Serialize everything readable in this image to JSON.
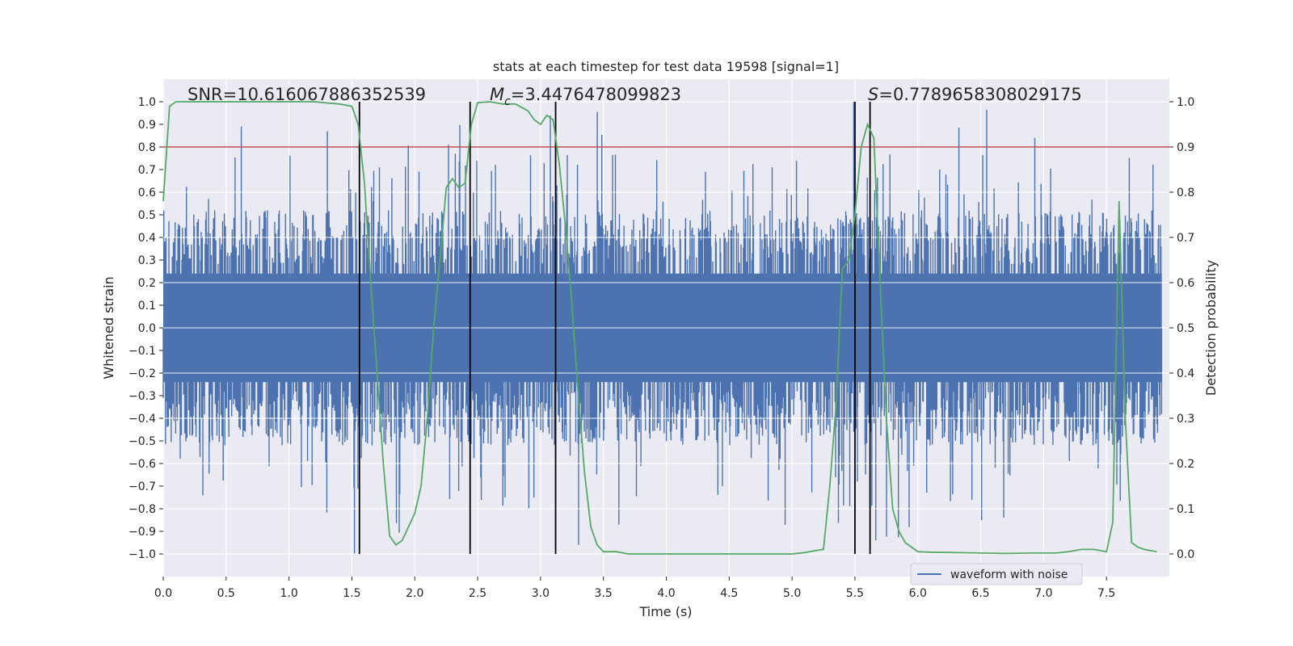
{
  "chart_data": {
    "type": "line",
    "title": "stats at each timestep for test data 19598 [signal=1]",
    "xlabel": "Time (s)",
    "ylabel": "Whitened strain",
    "ylabel_right": "Detection probability",
    "xlim": [
      0.0,
      8.0
    ],
    "ylim": [
      -1.1,
      1.1
    ],
    "ylim_right": [
      -0.05,
      1.05
    ],
    "x_ticks": [
      0.0,
      0.5,
      1.0,
      1.5,
      2.0,
      2.5,
      3.0,
      3.5,
      4.0,
      4.5,
      5.0,
      5.5,
      6.0,
      6.5,
      7.0,
      7.5
    ],
    "x_tick_labels": [
      "0.0",
      "0.5",
      "1.0",
      "1.5",
      "2.0",
      "2.5",
      "3.0",
      "3.5",
      "4.0",
      "4.5",
      "5.0",
      "5.5",
      "6.0",
      "6.5",
      "7.0",
      "7.5"
    ],
    "y_ticks": [
      1.0,
      0.9,
      0.8,
      0.7,
      0.6,
      0.5,
      0.4,
      0.3,
      0.2,
      0.1,
      0.0,
      -0.1,
      -0.2,
      -0.3,
      -0.4,
      -0.5,
      -0.6,
      -0.7,
      -0.8,
      -0.9,
      -1.0
    ],
    "y_tick_labels": [
      "1.0",
      "0.9",
      "0.8",
      "0.7",
      "0.6",
      "0.5",
      "0.4",
      "0.3",
      "0.2",
      "0.1",
      "0.0",
      "−0.1",
      "−0.2",
      "−0.3",
      "−0.4",
      "−0.5",
      "−0.6",
      "−0.7",
      "−0.8",
      "−0.9",
      "−1.0"
    ],
    "y_right_ticks": [
      1.0,
      0.9,
      0.8,
      0.7,
      0.6,
      0.5,
      0.4,
      0.3,
      0.2,
      0.1,
      0.0
    ],
    "y_right_tick_labels": [
      "1.0",
      "0.9",
      "0.8",
      "0.7",
      "0.6",
      "0.5",
      "0.4",
      "0.3",
      "0.2",
      "0.1",
      "0.0"
    ],
    "annotations": {
      "snr": "SNR=10.616067886352539",
      "mc_symbol": "M",
      "mc_subscript": "c",
      "mc_value": "=3.4476478099823",
      "s_symbol": "S",
      "s_value": "=0.7789658308029175"
    },
    "legend": {
      "label": "waveform with noise",
      "placement": "lower-right"
    },
    "threshold": {
      "value": 0.9,
      "axis": "right",
      "color": "#c44e52"
    },
    "vertical_lines": [
      1.56,
      2.44,
      3.12,
      5.5,
      5.62
    ],
    "colors": {
      "waveform": "#4c72b0",
      "probability": "#55a868",
      "vlines": "#000000",
      "background": "#eaeaf2"
    },
    "series": [
      {
        "name": "waveform with noise",
        "axis": "left",
        "description": "whitened strain, dense noise with amplitude roughly 0.3-0.6 and peaks up to about 1.0"
      },
      {
        "name": "Detection probability",
        "axis": "right",
        "x": [
          0.0,
          0.05,
          0.1,
          0.2,
          0.4,
          0.6,
          0.8,
          1.0,
          1.2,
          1.4,
          1.5,
          1.55,
          1.6,
          1.65,
          1.7,
          1.75,
          1.8,
          1.85,
          1.9,
          1.95,
          2.0,
          2.05,
          2.1,
          2.15,
          2.2,
          2.25,
          2.3,
          2.35,
          2.4,
          2.45,
          2.5,
          2.6,
          2.7,
          2.8,
          2.9,
          2.95,
          3.0,
          3.05,
          3.1,
          3.15,
          3.2,
          3.25,
          3.3,
          3.35,
          3.4,
          3.45,
          3.5,
          3.6,
          3.7,
          3.8,
          4.0,
          4.5,
          5.0,
          5.1,
          5.2,
          5.25,
          5.3,
          5.35,
          5.4,
          5.45,
          5.5,
          5.55,
          5.6,
          5.65,
          5.7,
          5.75,
          5.8,
          5.85,
          5.9,
          5.95,
          6.0,
          6.1,
          6.3,
          6.5,
          6.7,
          6.9,
          7.1,
          7.2,
          7.3,
          7.4,
          7.5,
          7.55,
          7.6,
          7.65,
          7.7,
          7.75,
          7.8,
          7.9
        ],
        "values": [
          0.78,
          0.99,
          1.0,
          1.0,
          1.0,
          1.0,
          1.0,
          1.0,
          1.0,
          0.995,
          0.99,
          0.95,
          0.82,
          0.6,
          0.4,
          0.2,
          0.04,
          0.02,
          0.03,
          0.06,
          0.09,
          0.15,
          0.3,
          0.5,
          0.65,
          0.81,
          0.83,
          0.81,
          0.82,
          0.95,
          0.998,
          1.0,
          0.995,
          0.995,
          0.98,
          0.96,
          0.95,
          0.97,
          0.96,
          0.86,
          0.72,
          0.55,
          0.35,
          0.18,
          0.06,
          0.02,
          0.005,
          0.005,
          0.0,
          0.0,
          0.0,
          0.0,
          0.0,
          0.003,
          0.008,
          0.01,
          0.15,
          0.33,
          0.63,
          0.65,
          0.75,
          0.9,
          0.95,
          0.92,
          0.6,
          0.3,
          0.1,
          0.05,
          0.025,
          0.015,
          0.005,
          0.004,
          0.003,
          0.002,
          0.001,
          0.002,
          0.002,
          0.005,
          0.01,
          0.01,
          0.005,
          0.07,
          0.78,
          0.3,
          0.025,
          0.015,
          0.01,
          0.005
        ]
      }
    ]
  }
}
